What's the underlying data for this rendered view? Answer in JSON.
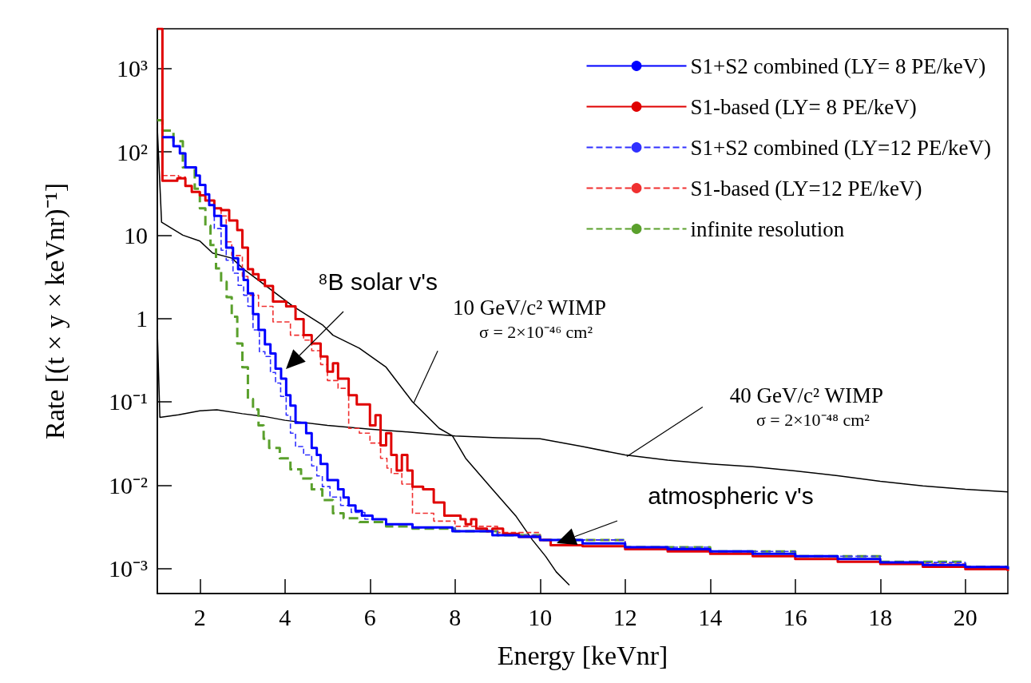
{
  "chart_data": {
    "type": "step",
    "xlabel": "Energy [keVnr]",
    "ylabel": "Rate [(t × y × keVnr)⁻¹]",
    "xlim": [
      1,
      21
    ],
    "xticks": [
      2,
      4,
      6,
      8,
      10,
      12,
      14,
      16,
      18,
      20
    ],
    "ylim": [
      0.0005,
      3000
    ],
    "log": "y",
    "yticks": [
      {
        "value": 0.001,
        "label": "10⁻³"
      },
      {
        "value": 0.01,
        "label": "10⁻²"
      },
      {
        "value": 0.1,
        "label": "10⁻¹"
      },
      1,
      10,
      {
        "value": 100,
        "label": "10²"
      },
      {
        "value": 1000,
        "label": "10³"
      }
    ],
    "grid": false,
    "legend": "top right",
    "marker": "none",
    "series": [
      {
        "type": "line",
        "color": "#000000",
        "line_style": "solid",
        "x": [
          1.0,
          1.1,
          1.6,
          2.0,
          2.3,
          2.75,
          3.06,
          3.56,
          4.19,
          4.88,
          5.13,
          5.75,
          6.38,
          7.0,
          7.63,
          7.94,
          8.25,
          8.88,
          9.44,
          9.82,
          10.13,
          10.38,
          10.69
        ],
        "values": [
          195,
          14.3,
          10,
          8.5,
          6.1,
          5.3,
          3.8,
          2.45,
          1.4,
          0.84,
          0.63,
          0.44,
          0.26,
          0.1,
          0.048,
          0.039,
          0.021,
          0.0089,
          0.0042,
          0.0022,
          0.0014,
          0.00091,
          0.00063
        ]
      },
      {
        "type": "line",
        "color": "#000000",
        "line_style": "solid",
        "x": [
          1.0,
          1.06,
          1.5,
          2.0,
          2.4,
          3.0,
          3.5,
          4.0,
          5.0,
          6.0,
          7.0,
          8.0,
          9.0,
          10,
          11,
          12,
          13,
          14,
          15,
          16,
          17,
          18,
          19,
          20,
          21
        ],
        "values": [
          0.7,
          0.065,
          0.07,
          0.078,
          0.08,
          0.072,
          0.067,
          0.06,
          0.052,
          0.047,
          0.043,
          0.039,
          0.037,
          0.036,
          0.029,
          0.023,
          0.02,
          0.018,
          0.0166,
          0.0148,
          0.013,
          0.0111,
          0.0098,
          0.0089,
          0.0083
        ]
      },
      {
        "name": "infinite resolution",
        "color": "#5aa02c",
        "line_style": "dashed",
        "x": [
          1.0,
          1.12,
          1.38,
          1.6,
          1.88,
          2.0,
          2.13,
          2.25,
          2.38,
          2.5,
          2.63,
          2.75,
          2.88,
          3.0,
          3.13,
          3.25,
          3.38,
          3.5,
          3.63,
          3.88,
          4.13,
          4.38,
          4.63,
          4.88,
          5.13,
          5.38,
          5.75,
          6.38,
          7,
          8,
          9,
          10,
          12,
          14,
          16,
          18,
          20,
          21
        ],
        "values": [
          240,
          180,
          134,
          65,
          36,
          21,
          13,
          7.6,
          4.0,
          2.75,
          1.8,
          1.05,
          0.5,
          0.26,
          0.108,
          0.081,
          0.052,
          0.036,
          0.028,
          0.021,
          0.0155,
          0.012,
          0.0089,
          0.0066,
          0.0046,
          0.004,
          0.0036,
          0.0032,
          0.003,
          0.0028,
          0.0025,
          0.0022,
          0.0018,
          0.0016,
          0.0014,
          0.0012,
          0.00105,
          0.00098
        ]
      },
      {
        "name": "S1-based (LY=12 PE/keV)",
        "color": "#f03030",
        "line_style": "dashed",
        "x": [
          1.12,
          1.5,
          1.66,
          1.81,
          2.0,
          2.13,
          2.34,
          2.5,
          2.62,
          2.75,
          3.0,
          3.13,
          3.38,
          3.72,
          4.13,
          4.44,
          4.63,
          4.84,
          5.0,
          5.25,
          5.5,
          5.75,
          6.0,
          6.25,
          6.4,
          6.5,
          6.75,
          7.0,
          7.5,
          8.0,
          9.0,
          10,
          12,
          14,
          16,
          18,
          20,
          21
        ],
        "values": [
          52,
          50,
          39,
          33,
          30,
          26,
          21,
          17,
          8.3,
          5.7,
          3.2,
          1.9,
          1.4,
          0.91,
          0.63,
          0.55,
          0.41,
          0.28,
          0.18,
          0.145,
          0.048,
          0.042,
          0.032,
          0.021,
          0.016,
          0.0138,
          0.0103,
          0.0046,
          0.0037,
          0.0032,
          0.0027,
          0.0022,
          0.0017,
          0.0015,
          0.0013,
          0.00113,
          0.00098,
          0.00093
        ]
      },
      {
        "name": "S1+S2 combined (LY=12 PE/keV)",
        "color": "#3030ff",
        "line_style": "dashed",
        "x": [
          2.13,
          2.22,
          2.34,
          2.5,
          2.62,
          2.78,
          2.9,
          3.03,
          3.13,
          3.25,
          3.4,
          3.53,
          3.66,
          3.78,
          3.9,
          4.03,
          4.13,
          4.25,
          4.44,
          4.63,
          4.75,
          4.88,
          5.06,
          5.31,
          5.56,
          5.88,
          6.38,
          7.0,
          8,
          9,
          10,
          12,
          14,
          16,
          18,
          20,
          21
        ],
        "values": [
          31,
          23,
          12,
          6.6,
          5.0,
          3.5,
          2.5,
          1.9,
          1.4,
          0.73,
          0.4,
          0.35,
          0.225,
          0.168,
          0.116,
          0.069,
          0.042,
          0.029,
          0.023,
          0.017,
          0.0129,
          0.0096,
          0.0072,
          0.0057,
          0.0047,
          0.0039,
          0.0034,
          0.0031,
          0.0028,
          0.0025,
          0.0022,
          0.0018,
          0.0016,
          0.0014,
          0.00118,
          0.00104,
          0.00098
        ]
      },
      {
        "name": "S1-based (LY= 8 PE/keV)",
        "color": "#e00000",
        "line_style": "solid",
        "x": [
          1.0,
          1.12,
          1.47,
          1.66,
          1.81,
          2.0,
          2.13,
          2.34,
          2.5,
          2.69,
          2.88,
          3.0,
          3.13,
          3.25,
          3.38,
          3.53,
          3.72,
          4.03,
          4.25,
          4.44,
          4.63,
          4.84,
          5.0,
          5.13,
          5.25,
          5.5,
          5.69,
          6.0,
          6.13,
          6.25,
          6.38,
          6.5,
          6.63,
          6.75,
          6.88,
          7.0,
          7.25,
          7.5,
          7.75,
          8.13,
          8.25,
          8.38,
          8.5,
          8.75,
          8.88,
          9.13,
          9.5,
          10.0,
          10.25,
          11,
          12,
          13,
          14,
          15,
          16,
          17,
          18,
          19,
          20,
          21
        ],
        "values": [
          3000,
          45,
          48,
          39,
          33,
          30,
          26,
          21,
          20,
          15,
          11.5,
          7.1,
          3.9,
          3.4,
          2.9,
          2.45,
          1.6,
          1.4,
          0.98,
          0.63,
          0.5,
          0.35,
          0.23,
          0.29,
          0.19,
          0.12,
          0.093,
          0.052,
          0.069,
          0.03,
          0.042,
          0.023,
          0.015,
          0.023,
          0.015,
          0.0096,
          0.0089,
          0.0062,
          0.0043,
          0.0039,
          0.0034,
          0.0039,
          0.003,
          0.0028,
          0.003,
          0.0026,
          0.0024,
          0.0022,
          0.0019,
          0.00185,
          0.0017,
          0.0016,
          0.0015,
          0.0014,
          0.0013,
          0.0012,
          0.00113,
          0.00105,
          0.00098,
          0.00093
        ]
      },
      {
        "name": "S1+S2 combined (LY= 8 PE/keV)",
        "color": "#0000ff",
        "line_style": "solid",
        "x": [
          1.12,
          1.38,
          1.53,
          1.66,
          1.91,
          2.0,
          2.13,
          2.22,
          2.34,
          2.5,
          2.62,
          2.78,
          2.9,
          3.03,
          3.13,
          3.25,
          3.38,
          3.53,
          3.66,
          3.78,
          3.91,
          4.03,
          4.13,
          4.25,
          4.5,
          4.63,
          4.75,
          4.84,
          5.0,
          5.25,
          5.38,
          5.5,
          5.66,
          5.81,
          6.06,
          6.38,
          7.0,
          7.94,
          8.88,
          9.5,
          10,
          11,
          12,
          13,
          14,
          15,
          16,
          17,
          18,
          19,
          20,
          21
        ],
        "values": [
          150,
          117,
          96,
          65,
          52,
          40,
          31,
          23,
          17,
          13,
          7.1,
          5.3,
          3.9,
          2.9,
          2.0,
          1.13,
          0.73,
          0.49,
          0.38,
          0.25,
          0.19,
          0.12,
          0.09,
          0.056,
          0.042,
          0.028,
          0.023,
          0.018,
          0.0115,
          0.0089,
          0.0071,
          0.0057,
          0.0049,
          0.0043,
          0.0039,
          0.0034,
          0.0031,
          0.0028,
          0.0025,
          0.0024,
          0.0022,
          0.002,
          0.0018,
          0.0017,
          0.0016,
          0.0015,
          0.0014,
          0.0013,
          0.00118,
          0.0011,
          0.00104,
          0.00098
        ]
      }
    ],
    "annotations": [
      "⁸B solar v's",
      {
        "text": "10 GeV/c² WIMP\nσ = 2×10⁻⁴⁶ cm²",
        "x": 7.03,
        "y": 0.097
      },
      {
        "text": "40 GeV/c² WIMP\nσ = 2×10⁻⁴⁸ cm²",
        "x": 12.04,
        "y": 0.022
      },
      "atmospheric v's"
    ]
  }
}
